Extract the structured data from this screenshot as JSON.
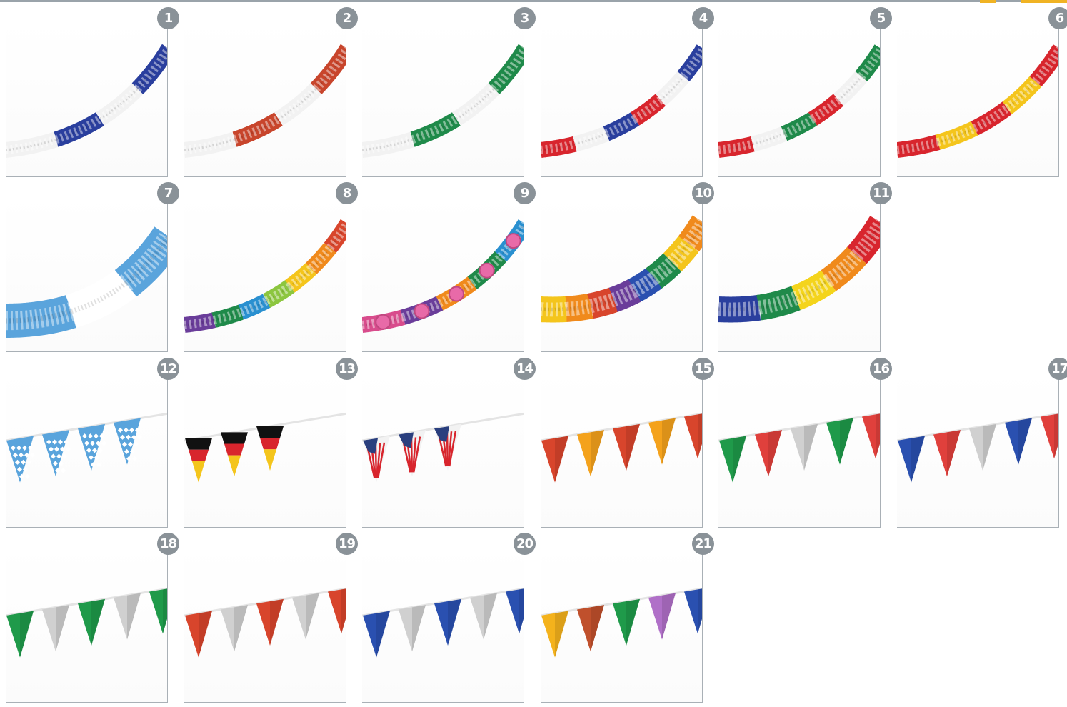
{
  "colors": {
    "badge": "#8a9298",
    "rule": "#9aa3aa",
    "accent": "#f0b323"
  },
  "items": [
    {
      "number": "1",
      "type": "garland",
      "colors": [
        "#f2f2f2",
        "#2a3f9e",
        "#f2f2f2",
        "#2a3f9e"
      ]
    },
    {
      "number": "2",
      "type": "garland",
      "colors": [
        "#f2f2f2",
        "#c8452c",
        "#f2f2f2",
        "#c8452c"
      ]
    },
    {
      "number": "3",
      "type": "garland",
      "colors": [
        "#f2f2f2",
        "#1f8a4a",
        "#f2f2f2",
        "#1f8a4a"
      ]
    },
    {
      "number": "4",
      "type": "garland",
      "colors": [
        "#d8252d",
        "#f2f2f2",
        "#2a3f9e",
        "#d8252d",
        "#f2f2f2",
        "#2a3f9e"
      ]
    },
    {
      "number": "5",
      "type": "garland",
      "colors": [
        "#d8252d",
        "#f2f2f2",
        "#1f8a4a",
        "#d8252d",
        "#f2f2f2",
        "#1f8a4a"
      ]
    },
    {
      "number": "6",
      "type": "garland",
      "colors": [
        "#d8252d",
        "#f4c51c",
        "#d8252d",
        "#f4c51c",
        "#d8252d"
      ]
    },
    {
      "number": "7",
      "type": "garland-wide",
      "colors": [
        "#5aa4dc",
        "#ffffff",
        "#5aa4dc"
      ]
    },
    {
      "number": "8",
      "type": "garland",
      "colors": [
        "#6a3d9a",
        "#1f8a4a",
        "#2a90d0",
        "#8cc63f",
        "#f4c51c",
        "#f08a1c",
        "#d8452c"
      ]
    },
    {
      "number": "9",
      "type": "garland-balls",
      "colors": [
        "#d84c8c",
        "#6a3d9a",
        "#f08a1c",
        "#1f8a4a",
        "#2a90d0"
      ]
    },
    {
      "number": "10",
      "type": "garland-thick",
      "colors": [
        "#f4c51c",
        "#f08a1c",
        "#d8452c",
        "#6a3d9a",
        "#2a50b0",
        "#1f8a4a",
        "#f4c51c",
        "#f08a1c"
      ]
    },
    {
      "number": "11",
      "type": "garland-thick",
      "colors": [
        "#2a3f9e",
        "#1f8a4a",
        "#f4d41c",
        "#f08a1c",
        "#d8252d"
      ]
    },
    {
      "number": "12",
      "type": "pennant",
      "colors": [
        "#5aa4dc",
        "#5aa4dc",
        "#5aa4dc",
        "#5aa4dc"
      ]
    },
    {
      "number": "13",
      "type": "pennant-flag",
      "colors": [
        "#111111",
        "#d8252d",
        "#f4c51c"
      ]
    },
    {
      "number": "14",
      "type": "pennant-usa",
      "colors": [
        "#2a3f7e",
        "#d8252d",
        "#f2f2f2"
      ]
    },
    {
      "number": "15",
      "type": "pennant",
      "colors": [
        "#d8452c",
        "#f4a21c",
        "#d8452c",
        "#f4a21c",
        "#d8452c"
      ]
    },
    {
      "number": "16",
      "type": "pennant",
      "colors": [
        "#1f9a4a",
        "#e0403c",
        "#d0d0d0",
        "#1f9a4a",
        "#e0403c"
      ]
    },
    {
      "number": "17",
      "type": "pennant",
      "colors": [
        "#2a50b0",
        "#e0403c",
        "#d0d0d0",
        "#2a50b0",
        "#e0403c"
      ]
    },
    {
      "number": "18",
      "type": "pennant",
      "colors": [
        "#1f9a4a",
        "#d0d0d0",
        "#1f9a4a",
        "#d0d0d0",
        "#1f9a4a"
      ]
    },
    {
      "number": "19",
      "type": "pennant",
      "colors": [
        "#d8452c",
        "#d0d0d0",
        "#d8452c",
        "#d0d0d0",
        "#d8452c"
      ]
    },
    {
      "number": "20",
      "type": "pennant",
      "colors": [
        "#2a50b0",
        "#d0d0d0",
        "#2a50b0",
        "#d0d0d0",
        "#2a50b0"
      ]
    },
    {
      "number": "21",
      "type": "pennant",
      "colors": [
        "#f4b21c",
        "#c0502c",
        "#1f9a4a",
        "#b070c8",
        "#2a50b0"
      ]
    }
  ]
}
